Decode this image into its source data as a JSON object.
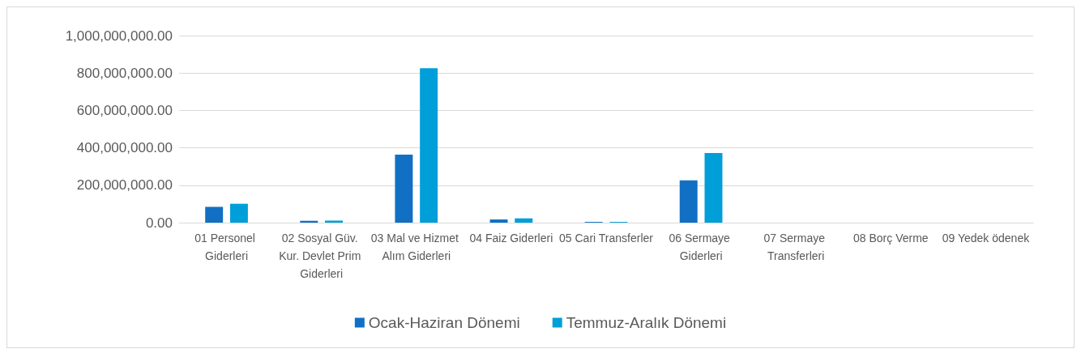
{
  "chart_data": {
    "type": "bar",
    "categories": [
      "01 Personel Giderleri",
      "02 Sosyal Güv. Kur. Devlet Prim Giderleri",
      "03 Mal ve Hizmet Alım Giderleri",
      "04 Faiz Giderleri",
      "05 Cari Transferler",
      "06 Sermaye Giderleri",
      "07 Sermaye Transferleri",
      "08 Borç Verme",
      "09 Yedek ödenek"
    ],
    "series": [
      {
        "name": "Ocak-Haziran Dönemi",
        "color": "#1170c4",
        "values": [
          84000000,
          10000000,
          364000000,
          17000000,
          4000000,
          226000000,
          0,
          0,
          0
        ]
      },
      {
        "name": "Temmuz-Aralık Dönemi",
        "color": "#009fd9",
        "values": [
          101000000,
          11000000,
          826000000,
          23000000,
          4000000,
          372000000,
          0,
          0,
          0
        ]
      }
    ],
    "ylim": [
      0,
      1000000000
    ],
    "yticks": [
      {
        "value": 0,
        "label": "0.00"
      },
      {
        "value": 200000000,
        "label": "200,000,000.00"
      },
      {
        "value": 400000000,
        "label": "400,000,000.00"
      },
      {
        "value": 600000000,
        "label": "600,000,000.00"
      },
      {
        "value": 800000000,
        "label": "800,000,000.00"
      },
      {
        "value": 1000000000,
        "label": "1,000,000,000.00"
      }
    ],
    "grid": "y",
    "legend": "bottom"
  }
}
